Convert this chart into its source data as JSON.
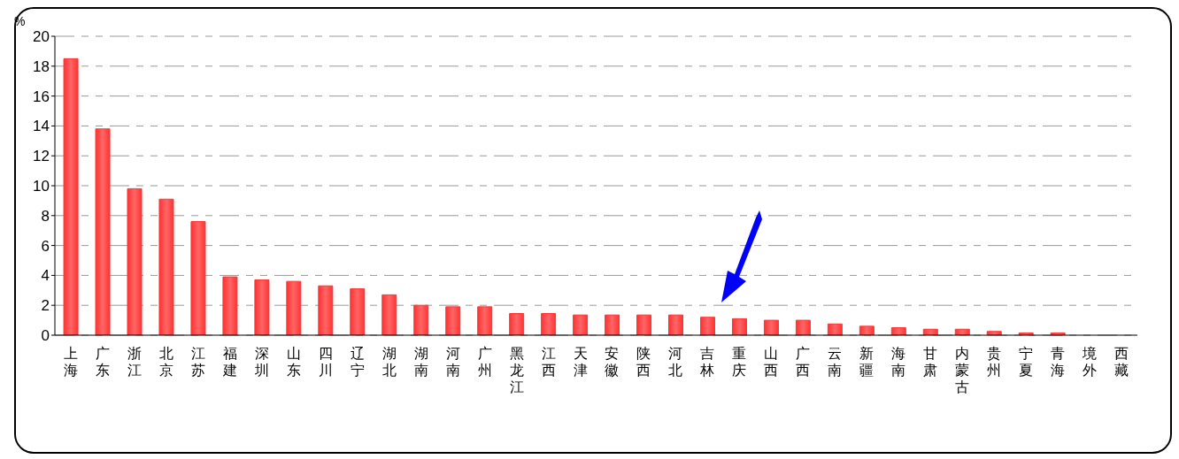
{
  "chart_data": {
    "type": "bar",
    "ylabel": "%",
    "categories": [
      "上海",
      "广东",
      "浙江",
      "北京",
      "江苏",
      "福建",
      "深圳",
      "山东",
      "四川",
      "辽宁",
      "湖北",
      "湖南",
      "河南",
      "广州",
      "黑龙江",
      "江西",
      "天津",
      "安徽",
      "陕西",
      "河北",
      "吉林",
      "重庆",
      "山西",
      "广西",
      "云南",
      "新疆",
      "海南",
      "甘肃",
      "内蒙古",
      "贵州",
      "宁夏",
      "青海",
      "境外",
      "西藏"
    ],
    "values": [
      18.5,
      13.8,
      9.8,
      9.1,
      7.6,
      3.9,
      3.7,
      3.6,
      3.3,
      3.1,
      2.7,
      2.0,
      1.9,
      1.9,
      1.45,
      1.45,
      1.35,
      1.35,
      1.35,
      1.35,
      1.2,
      1.1,
      1.0,
      1.0,
      0.75,
      0.6,
      0.5,
      0.4,
      0.4,
      0.25,
      0.15,
      0.15,
      0,
      0
    ],
    "color": "#ff3333",
    "ylim": [
      0,
      20
    ],
    "yticks": [
      0,
      2,
      4,
      6,
      8,
      10,
      12,
      14,
      16,
      18,
      20
    ],
    "grid": "y"
  }
}
